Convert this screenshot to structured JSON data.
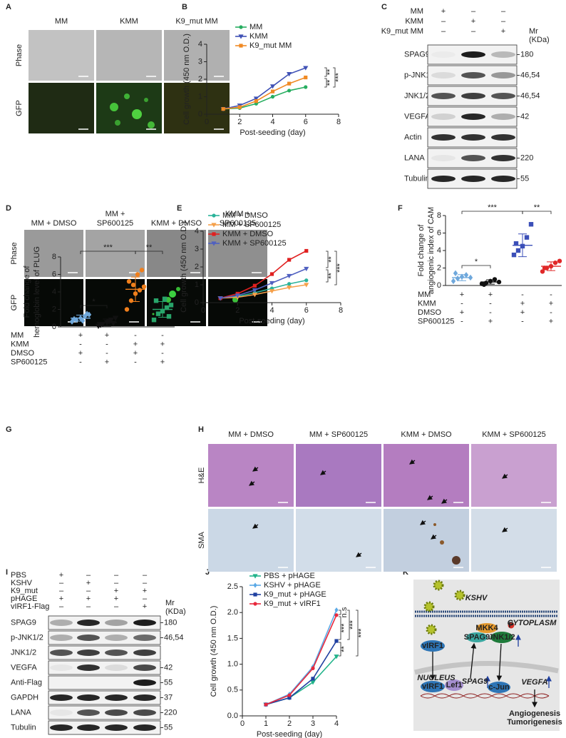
{
  "panel_labels": [
    "A",
    "B",
    "C",
    "D",
    "E",
    "F",
    "G",
    "H",
    "I",
    "J",
    "K"
  ],
  "panel_a": {
    "columns": [
      "MM",
      "KMM",
      "K9_mut MM"
    ],
    "rows": [
      "Phase",
      "GFP"
    ]
  },
  "panel_c": {
    "conditions": [
      {
        "label": "MM",
        "signs": [
          "+",
          "–",
          "–"
        ]
      },
      {
        "label": "KMM",
        "signs": [
          "–",
          "+",
          "–"
        ]
      },
      {
        "label": "K9_mut MM",
        "signs": [
          "–",
          "–",
          "+"
        ]
      }
    ],
    "mr_label": [
      "Mr",
      "(KDa)"
    ],
    "bands": [
      {
        "label": "SPAG9",
        "mr": "180"
      },
      {
        "label": "p-JNK1/2",
        "mr": "46,54"
      },
      {
        "label": "JNK1/2",
        "mr": "46,54"
      },
      {
        "label": "VEGFA",
        "mr": "42"
      },
      {
        "label": "Actin"
      },
      {
        "label": "LANA",
        "mr": "220"
      },
      {
        "label": "Tubulin",
        "mr": "55"
      }
    ]
  },
  "panel_d": {
    "columns": [
      [
        "MM + DMSO"
      ],
      [
        "MM +",
        "SP600125"
      ],
      [
        "KMM + DMSO"
      ],
      [
        "KMM +",
        "SP600125"
      ]
    ],
    "rows": [
      "Phase",
      "GFP"
    ]
  },
  "panel_h": {
    "columns": [
      "MM + DMSO",
      "MM + SP600125",
      "KMM + DMSO",
      "KMM + SP600125"
    ],
    "rows": [
      "H&E",
      "SMA"
    ]
  },
  "panel_i": {
    "conditions": [
      {
        "label": "PBS",
        "signs": [
          "+",
          "–",
          "–",
          "–"
        ]
      },
      {
        "label": "KSHV",
        "signs": [
          "–",
          "+",
          "–",
          "–"
        ]
      },
      {
        "label": "K9_mut",
        "signs": [
          "–",
          "–",
          "+",
          "+"
        ]
      },
      {
        "label": "pHAGE",
        "signs": [
          "+",
          "+",
          "+",
          "–"
        ]
      },
      {
        "label": "vIRF1-Flag",
        "signs": [
          "–",
          "–",
          "–",
          "+"
        ]
      }
    ],
    "mr_label": [
      "Mr",
      "(KDa)"
    ],
    "bands": [
      {
        "label": "SPAG9",
        "mr": "180"
      },
      {
        "label": "p-JNK1/2",
        "mr": "46,54"
      },
      {
        "label": "JNK1/2"
      },
      {
        "label": "VEGFA",
        "mr": "42"
      },
      {
        "label": "Anti-Flag",
        "mr": "55"
      },
      {
        "label": "GAPDH",
        "mr": "37"
      },
      {
        "label": "LANA",
        "mr": "220"
      },
      {
        "label": "Tubulin",
        "mr": "55"
      }
    ]
  },
  "panel_k": {
    "virus": "KSHV",
    "cytoplasm": "CYTOPLASM",
    "nucleus": "NUCLEUS",
    "virf1_cyto": "vIRF1",
    "virf1_nuc": "vIRF1",
    "lef1": "Lef1",
    "spag9_gene": "SPAG9",
    "mkk4": "MKK4",
    "spag9_protein": "SPAG9",
    "jnk": "JNK1/2",
    "phospho": "P",
    "cjun": "c-Jun",
    "vegfa_gene": "VEGFA",
    "outcome_1": "Angiogenesis",
    "outcome_2": "Tumorigenesis"
  },
  "chart_data": [
    {
      "type": "line",
      "x": [
        1,
        2,
        3,
        4,
        5,
        6
      ],
      "series": [
        {
          "name": "MM",
          "color": "#27ae60",
          "marker": "circle",
          "values": [
            0.3,
            0.35,
            0.6,
            1.0,
            1.35,
            1.55
          ]
        },
        {
          "name": "KMM",
          "color": "#3f51b5",
          "marker": "triangle-down",
          "values": [
            0.3,
            0.5,
            0.9,
            1.6,
            2.3,
            2.65
          ]
        },
        {
          "name": "K9_mut MM",
          "color": "#f08a24",
          "marker": "square",
          "values": [
            0.3,
            0.4,
            0.75,
            1.3,
            1.75,
            2.1
          ]
        }
      ],
      "xlim": [
        0,
        8
      ],
      "xticks": [
        0,
        2,
        4,
        6,
        8
      ],
      "ylim": [
        0,
        4
      ],
      "yticks": [
        0,
        1,
        2,
        3,
        4
      ],
      "x_label": "Post-seeding (day)",
      "y_label": "Cell growth (450 nm O.D.)",
      "annotations": [
        "**",
        "**",
        "***"
      ]
    },
    {
      "type": "line",
      "x": [
        1,
        2,
        3,
        4,
        5,
        6
      ],
      "series": [
        {
          "name": "MM + DMSO",
          "color": "#2bb39a",
          "marker": "circle",
          "values": [
            0.25,
            0.35,
            0.55,
            0.8,
            1.05,
            1.25
          ]
        },
        {
          "name": "MM + SP600125",
          "color": "#f5a04a",
          "marker": "triangle-down",
          "values": [
            0.25,
            0.3,
            0.45,
            0.65,
            0.85,
            1.0
          ]
        },
        {
          "name": "KMM + DMSO",
          "color": "#e02020",
          "marker": "square",
          "values": [
            0.25,
            0.5,
            0.95,
            1.6,
            2.4,
            2.9
          ]
        },
        {
          "name": "KMM + SP600125",
          "color": "#5060c0",
          "marker": "triangle-down",
          "values": [
            0.25,
            0.4,
            0.7,
            1.1,
            1.5,
            1.9
          ]
        }
      ],
      "xlim": [
        0,
        8
      ],
      "xticks": [
        0,
        2,
        4,
        6,
        8
      ],
      "ylim": [
        0,
        4
      ],
      "yticks": [
        0,
        1,
        2,
        3,
        4
      ],
      "x_label": "Post-seeding (day)",
      "y_label": "Cell growth (450 nm O.D.)",
      "annotations": [
        "**",
        "**",
        "***"
      ]
    },
    {
      "type": "strip",
      "series": [
        {
          "color": "#6fa8dc",
          "marker": "diamond",
          "values": [
            0.5,
            0.8,
            1.0,
            1.2,
            0.9,
            1.4
          ],
          "mean": 0.9,
          "error": 0.35
        },
        {
          "color": "#111111",
          "marker": "circle",
          "values": [
            0.2,
            0.3,
            0.5,
            0.7,
            0.4,
            0.1
          ],
          "mean": 0.4,
          "error": 0.25
        },
        {
          "color": "#3b4fb8",
          "marker": "square",
          "values": [
            3.5,
            4.0,
            4.5,
            5.5,
            7.0,
            4.8
          ],
          "mean": 4.6,
          "error": 1.3
        },
        {
          "color": "#e02828",
          "marker": "circle",
          "values": [
            1.6,
            2.0,
            2.2,
            2.6,
            2.8,
            2.0
          ],
          "mean": 2.2,
          "error": 0.5
        }
      ],
      "ylim": [
        0,
        8
      ],
      "yticks": [
        0,
        2,
        4,
        6,
        8
      ],
      "y_label": [
        "Fold change of",
        "angiogenic index of CAM"
      ],
      "treatments": [
        {
          "label": "MM",
          "signs": [
            "+",
            "+",
            "-",
            "-"
          ]
        },
        {
          "label": "KMM",
          "signs": [
            "-",
            "-",
            "+",
            "+"
          ]
        },
        {
          "label": "DMSO",
          "signs": [
            "+",
            "-",
            "+",
            "-"
          ]
        },
        {
          "label": "SP600125",
          "signs": [
            "-",
            "+",
            "-",
            "+"
          ]
        }
      ],
      "annotations": [
        "***",
        "*",
        "**"
      ]
    },
    {
      "type": "strip",
      "series": [
        {
          "color": "#6fa8dc",
          "marker": "diamond",
          "values": [
            0.6,
            0.8,
            1.0,
            1.2,
            1.4,
            0.9,
            0.7,
            1.5
          ],
          "mean": 1.0,
          "error": 0.35
        },
        {
          "color": "#111111",
          "marker": "triangle-down",
          "values": [
            0.1,
            0.3,
            0.5,
            0.8,
            1.0,
            0.2,
            0.6,
            0.4
          ],
          "mean": 0.5,
          "error": 0.4
        },
        {
          "color": "#f07f1c",
          "marker": "circle",
          "values": [
            2.0,
            3.0,
            3.8,
            4.2,
            4.6,
            5.2,
            6.0,
            6.5,
            4.8
          ],
          "mean": 4.3,
          "error": 1.4
        },
        {
          "color": "#28a56a",
          "marker": "square",
          "values": [
            0.8,
            1.5,
            1.8,
            2.2,
            2.5,
            3.0,
            3.2,
            1.2
          ],
          "mean": 2.0,
          "error": 0.9
        }
      ],
      "ylim": [
        0,
        8
      ],
      "yticks": [
        0,
        2,
        4,
        6,
        8
      ],
      "y_label": [
        "Fold change of",
        "hemoglobin level of PLUG"
      ],
      "treatments": [
        {
          "label": "MM",
          "signs": [
            "+",
            "+",
            "-",
            "-"
          ]
        },
        {
          "label": "KMM",
          "signs": [
            "-",
            "-",
            "+",
            "+"
          ]
        },
        {
          "label": "DMSO",
          "signs": [
            "+",
            "-",
            "+",
            "-"
          ]
        },
        {
          "label": "SP600125",
          "signs": [
            "-",
            "+",
            "-",
            "+"
          ]
        }
      ],
      "annotations": [
        "***",
        "*",
        "**"
      ]
    },
    {
      "type": "line",
      "x": [
        1,
        2,
        3,
        4
      ],
      "series": [
        {
          "name": "PBS + pHAGE",
          "color": "#22b38a",
          "marker": "triangle-down",
          "values": [
            0.22,
            0.35,
            0.65,
            1.15
          ]
        },
        {
          "name": "KSHV + pHAGE",
          "color": "#5aa9e6",
          "marker": "diamond",
          "values": [
            0.22,
            0.42,
            0.95,
            2.05
          ]
        },
        {
          "name": "K9_mut + pHAGE",
          "color": "#1f3fa0",
          "marker": "square",
          "values": [
            0.22,
            0.35,
            0.72,
            1.45
          ]
        },
        {
          "name": "K9_mut + vIRF1",
          "color": "#e8283c",
          "marker": "circle",
          "values": [
            0.22,
            0.4,
            0.92,
            1.95
          ]
        }
      ],
      "xlim": [
        0,
        4
      ],
      "xticks": [
        0,
        1,
        2,
        3,
        4
      ],
      "ylim": [
        0,
        2.5
      ],
      "yticks": [
        {
          "value": 0,
          "label": "0.0"
        },
        {
          "value": 0.5,
          "label": "0.5"
        },
        {
          "value": 1,
          "label": "1.0"
        },
        {
          "value": 1.5,
          "label": "1.5"
        },
        {
          "value": 2,
          "label": "2.0"
        },
        {
          "value": 2.5,
          "label": "2.5"
        }
      ],
      "x_label": "Post-seeding (day)",
      "y_label": "Cell growth (450 nm O.D.)",
      "annotations": [
        "n.s",
        "***",
        "**",
        "***",
        "***"
      ]
    }
  ]
}
